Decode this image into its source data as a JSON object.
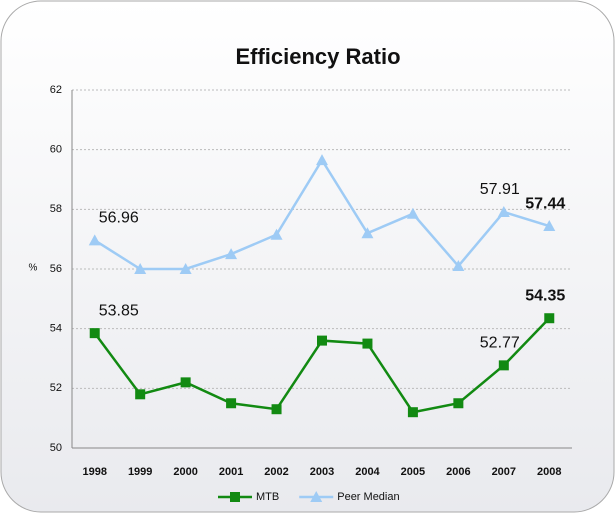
{
  "chart_data": {
    "type": "line",
    "title": "Efficiency Ratio",
    "y_label": "%",
    "categories": [
      "1998",
      "1999",
      "2000",
      "2001",
      "2002",
      "2003",
      "2004",
      "2005",
      "2006",
      "2007",
      "2008"
    ],
    "series": [
      {
        "name": "MTB",
        "color": "#128a12",
        "marker": "square",
        "values": [
          53.85,
          51.8,
          52.2,
          51.5,
          51.3,
          53.6,
          53.5,
          51.2,
          51.5,
          52.77,
          54.35
        ],
        "value_labels": [
          "53.85",
          null,
          null,
          null,
          null,
          null,
          null,
          null,
          null,
          "52.77",
          "54.35"
        ]
      },
      {
        "name": "Peer Median",
        "color": "#9ecbf5",
        "marker": "triangle",
        "values": [
          56.96,
          56.0,
          56.0,
          56.5,
          57.15,
          59.65,
          57.2,
          57.85,
          56.1,
          57.91,
          57.44
        ],
        "value_labels": [
          "56.96",
          null,
          null,
          null,
          null,
          null,
          null,
          null,
          null,
          "57.91",
          "57.44"
        ]
      }
    ],
    "ylim": [
      50,
      62
    ],
    "yticks": [
      50,
      52,
      54,
      56,
      58,
      60,
      62
    ],
    "grid": true,
    "legend": "bottom"
  }
}
